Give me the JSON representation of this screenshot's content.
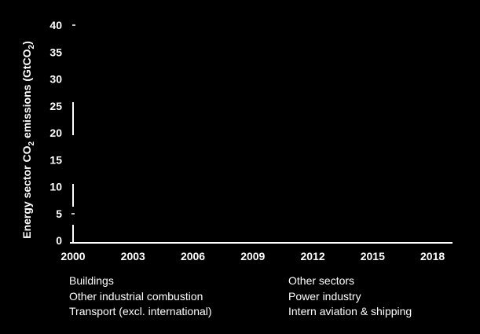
{
  "chart_data": {
    "type": "area",
    "ylabel_parts": {
      "before": "Energy sector CO",
      "sub1": "2",
      "middle": " emissions (GtCO",
      "sub2": "2",
      "after": ")"
    },
    "x_ticks": [
      "2000",
      "2003",
      "2006",
      "2009",
      "2012",
      "2015",
      "2018"
    ],
    "y_ticks": [
      "0",
      "5",
      "10",
      "15",
      "20",
      "25",
      "30",
      "35",
      "40"
    ],
    "xlim": [
      2000,
      2019
    ],
    "ylim": [
      0,
      40
    ],
    "grid": false,
    "legend_position": "bottom",
    "legend": [
      "Buildings",
      "Other sectors",
      "Other industrial combustion",
      "Power industry",
      "Transport (excl. international)",
      "Intern aviation & shipping"
    ],
    "series": []
  },
  "colors": {
    "background": "#000000",
    "foreground": "#ffffff"
  }
}
